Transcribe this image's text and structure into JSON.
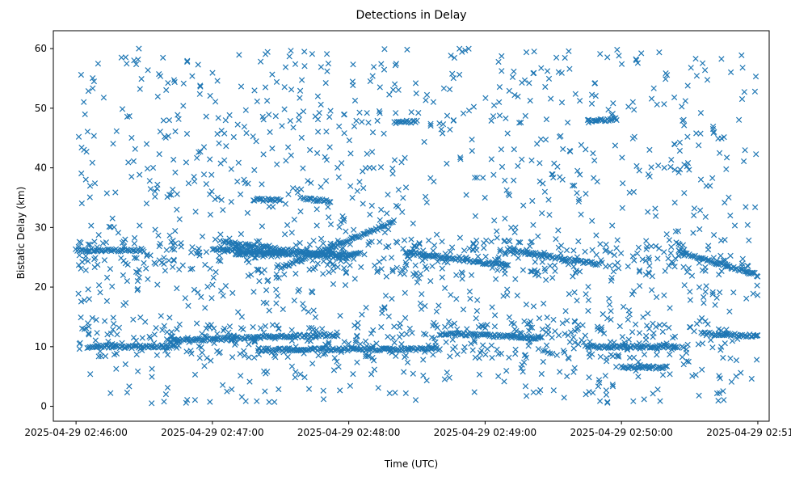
{
  "chart_data": {
    "type": "scatter",
    "title": "Detections in Delay",
    "xlabel": "Time (UTC)",
    "ylabel": "Bistatic Delay (km)",
    "marker": "x",
    "color": "#1f77b4",
    "grid": false,
    "legend": "none",
    "xlim": [
      "2025-04-29 02:45:50",
      "2025-04-29 02:51:05"
    ],
    "ylim": [
      -2.5,
      63
    ],
    "x_ticks": [
      "2025-04-29 02:46:00",
      "2025-04-29 02:47:00",
      "2025-04-29 02:48:00",
      "2025-04-29 02:49:00",
      "2025-04-29 02:50:00",
      "2025-04-29 02:51:00"
    ],
    "y_ticks": [
      0,
      10,
      20,
      30,
      40,
      50,
      60
    ],
    "data_start": "2025-04-29 02:46:00",
    "data_end": "2025-04-29 02:51:00",
    "tracks": [
      {
        "t0": "2025-04-29 02:46:00",
        "t1": "2025-04-29 02:46:30",
        "y0": 26.2,
        "y1": 26.2
      },
      {
        "t0": "2025-04-29 02:47:00",
        "t1": "2025-04-29 02:47:32",
        "y0": 26.4,
        "y1": 25.8
      },
      {
        "t0": "2025-04-29 02:47:05",
        "t1": "2025-04-29 02:48:00",
        "y0": 27.5,
        "y1": 24.8
      },
      {
        "t0": "2025-04-29 02:47:30",
        "t1": "2025-04-29 02:48:20",
        "y0": 23.2,
        "y1": 31.0
      },
      {
        "t0": "2025-04-29 02:47:10",
        "t1": "2025-04-29 02:48:05",
        "y0": 25.6,
        "y1": 25.6
      },
      {
        "t0": "2025-04-29 02:48:25",
        "t1": "2025-04-29 02:49:10",
        "y0": 25.8,
        "y1": 23.6
      },
      {
        "t0": "2025-04-29 02:49:10",
        "t1": "2025-04-29 02:49:50",
        "y0": 26.2,
        "y1": 23.8
      },
      {
        "t0": "2025-04-29 02:50:25",
        "t1": "2025-04-29 02:51:00",
        "y0": 26.0,
        "y1": 22.0
      },
      {
        "t0": "2025-04-29 02:47:18",
        "t1": "2025-04-29 02:47:30",
        "y0": 34.7,
        "y1": 34.6
      },
      {
        "t0": "2025-04-29 02:47:40",
        "t1": "2025-04-29 02:47:52",
        "y0": 34.8,
        "y1": 34.5
      },
      {
        "t0": "2025-04-29 02:49:45",
        "t1": "2025-04-29 02:49:58",
        "y0": 47.8,
        "y1": 48.2
      },
      {
        "t0": "2025-04-29 02:48:20",
        "t1": "2025-04-29 02:48:30",
        "y0": 47.6,
        "y1": 47.8
      },
      {
        "t0": "2025-04-29 02:46:05",
        "t1": "2025-04-29 02:46:45",
        "y0": 10.0,
        "y1": 10.0
      },
      {
        "t0": "2025-04-29 02:46:40",
        "t1": "2025-04-29 02:47:55",
        "y0": 11.0,
        "y1": 12.0
      },
      {
        "t0": "2025-04-29 02:47:20",
        "t1": "2025-04-29 02:48:40",
        "y0": 9.5,
        "y1": 9.6
      },
      {
        "t0": "2025-04-29 02:48:40",
        "t1": "2025-04-29 02:49:25",
        "y0": 12.2,
        "y1": 11.5
      },
      {
        "t0": "2025-04-29 02:49:45",
        "t1": "2025-04-29 02:50:25",
        "y0": 10.0,
        "y1": 10.0
      },
      {
        "t0": "2025-04-29 02:50:35",
        "t1": "2025-04-29 02:51:00",
        "y0": 12.2,
        "y1": 11.8
      },
      {
        "t0": "2025-04-29 02:50:00",
        "t1": "2025-04-29 02:50:20",
        "y0": 6.5,
        "y1": 6.5
      }
    ]
  }
}
